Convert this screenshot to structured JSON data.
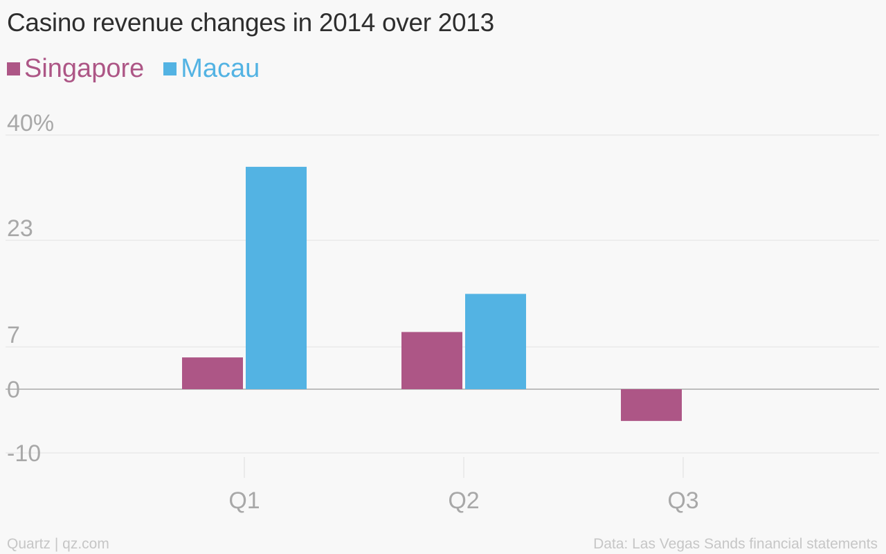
{
  "chart_data": {
    "type": "bar",
    "title": "Casino revenue changes in 2014 over 2013",
    "categories": [
      "Q1",
      "Q2",
      "Q3"
    ],
    "series": [
      {
        "name": "Singapore",
        "color": "#ad5686",
        "values": [
          5,
          9,
          -5
        ]
      },
      {
        "name": "Macau",
        "color": "#53b3e3",
        "values": [
          35,
          15,
          null
        ]
      }
    ],
    "y_ticks": [
      {
        "value": 40,
        "label": "40%"
      },
      {
        "value": 23,
        "label": "23"
      },
      {
        "value": 7,
        "label": "7"
      },
      {
        "value": 0,
        "label": "0"
      },
      {
        "value": -10,
        "label": "-10"
      }
    ],
    "ylim": [
      -10,
      40
    ],
    "grid": true,
    "legend_position": "top-left",
    "xlabel": "",
    "ylabel": ""
  },
  "footer": {
    "credit": "Quartz | qz.com",
    "source": "Data: Las Vegas Sands financial statements"
  }
}
